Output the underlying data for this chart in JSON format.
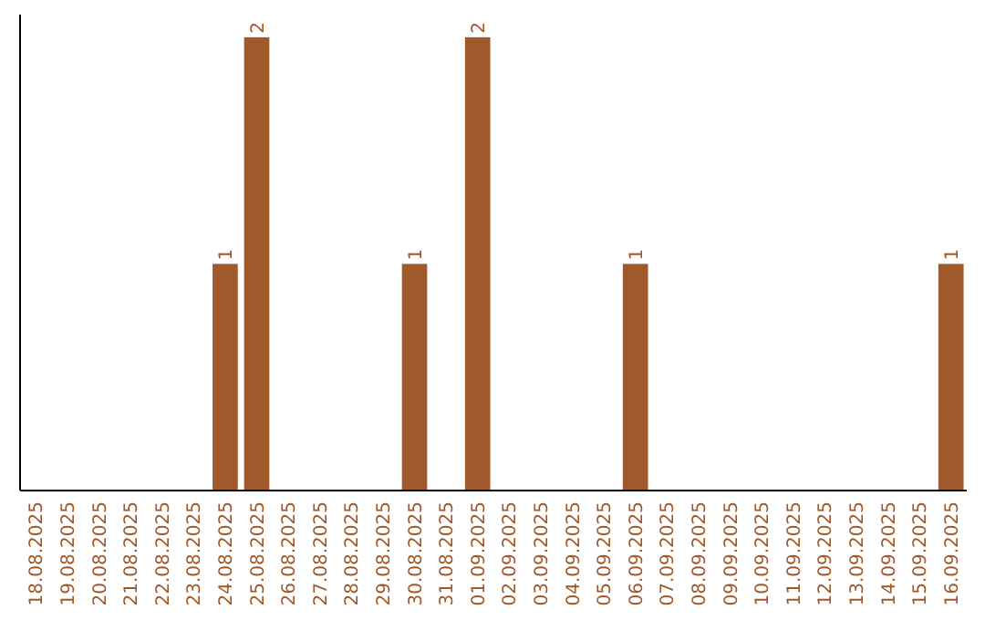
{
  "chart_data": {
    "type": "bar",
    "categories": [
      "18.08.2025",
      "19.08.2025",
      "20.08.2025",
      "21.08.2025",
      "22.08.2025",
      "23.08.2025",
      "24.08.2025",
      "25.08.2025",
      "26.08.2025",
      "27.08.2025",
      "28.08.2025",
      "29.08.2025",
      "30.08.2025",
      "31.08.2025",
      "01.09.2025",
      "02.09.2025",
      "03.09.2025",
      "04.09.2025",
      "05.09.2025",
      "06.09.2025",
      "07.09.2025",
      "08.09.2025",
      "09.09.2025",
      "10.09.2025",
      "11.09.2025",
      "12.09.2025",
      "13.09.2025",
      "14.09.2025",
      "15.09.2025",
      "16.09.2025"
    ],
    "values": [
      0,
      0,
      0,
      0,
      0,
      0,
      1,
      2,
      0,
      0,
      0,
      0,
      1,
      0,
      2,
      0,
      0,
      0,
      0,
      1,
      0,
      0,
      0,
      0,
      0,
      0,
      0,
      0,
      0,
      1
    ],
    "value_labels": [
      null,
      null,
      null,
      null,
      null,
      null,
      "1",
      "2",
      null,
      null,
      null,
      null,
      "1",
      null,
      "2",
      null,
      null,
      null,
      null,
      "1",
      null,
      null,
      null,
      null,
      null,
      null,
      null,
      null,
      null,
      "1"
    ],
    "color": "#a0592a",
    "ylim": [
      0,
      2.1
    ],
    "tick_labels": "x"
  }
}
